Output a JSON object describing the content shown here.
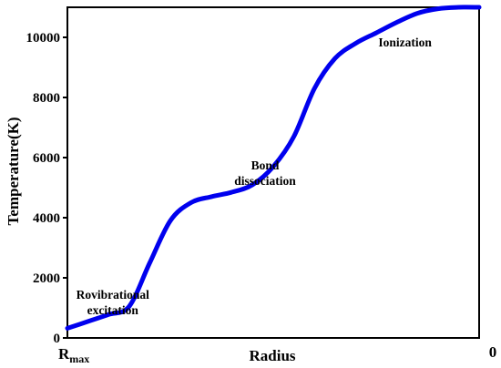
{
  "chart_data": {
    "type": "line",
    "title": "",
    "xlabel": "Radius",
    "ylabel": "Temperature(K)",
    "ylim": [
      0,
      11000
    ],
    "yticks": [
      0,
      2000,
      4000,
      6000,
      8000,
      10000
    ],
    "xlim": [
      0,
      1
    ],
    "x_tick_left": {
      "main": "R",
      "sub": "max"
    },
    "x_tick_right": "0",
    "grid": false,
    "legend": "none",
    "series": [
      {
        "color": "#0000ee",
        "x": [
          0.0,
          0.05,
          0.1,
          0.15,
          0.2,
          0.25,
          0.3,
          0.35,
          0.4,
          0.45,
          0.5,
          0.55,
          0.6,
          0.65,
          0.7,
          0.75,
          0.8,
          0.85,
          0.9,
          0.95,
          1.0
        ],
        "y": [
          320,
          550,
          780,
          1050,
          2500,
          3900,
          4500,
          4700,
          4850,
          5100,
          5700,
          6700,
          8300,
          9300,
          9800,
          10150,
          10500,
          10800,
          10950,
          11000,
          11000
        ]
      }
    ],
    "annotations": [
      {
        "lines": [
          "Rovibrational",
          "excitation"
        ],
        "x": 0.11,
        "y": 1300
      },
      {
        "lines": [
          "Bond",
          "dissociation"
        ],
        "x": 0.48,
        "y": 5600
      },
      {
        "lines": [
          "Ionization"
        ],
        "x": 0.82,
        "y": 9700
      }
    ]
  }
}
